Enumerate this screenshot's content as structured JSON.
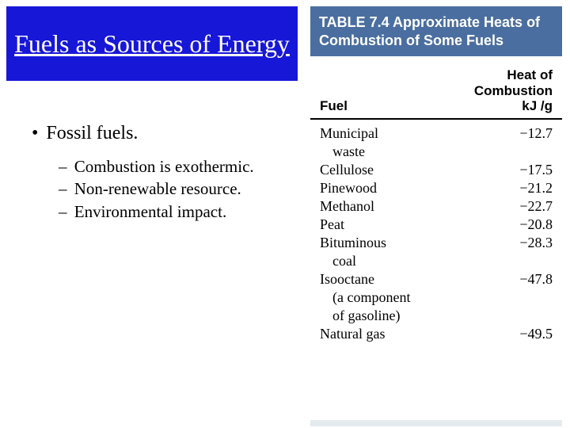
{
  "title": "Fuels as Sources of Energy",
  "main_bullet": "Fossil fuels.",
  "sub_bullets": [
    "Combustion is exothermic.",
    "Non-renewable resource.",
    "Environmental impact."
  ],
  "table": {
    "header": "TABLE 7.4   Approximate Heats of Combustion of Some Fuels",
    "col1": "Fuel",
    "col2_line1": "Heat of",
    "col2_line2": "Combustion",
    "col2_line3": "kJ /g",
    "rows": [
      {
        "fuel_line1": "Municipal",
        "fuel_line2": "waste",
        "value": "−12.7"
      },
      {
        "fuel_line1": "Cellulose",
        "fuel_line2": "",
        "value": "−17.5"
      },
      {
        "fuel_line1": "Pinewood",
        "fuel_line2": "",
        "value": "−21.2"
      },
      {
        "fuel_line1": "Methanol",
        "fuel_line2": "",
        "value": "−22.7"
      },
      {
        "fuel_line1": "Peat",
        "fuel_line2": "",
        "value": "−20.8"
      },
      {
        "fuel_line1": "Bituminous",
        "fuel_line2": "coal",
        "value": "−28.3"
      },
      {
        "fuel_line1": "Isooctane",
        "fuel_line2": "(a component",
        "fuel_line3": "of gasoline)",
        "value": "−47.8"
      },
      {
        "fuel_line1": "Natural gas",
        "fuel_line2": "",
        "value": "−49.5"
      }
    ]
  },
  "colors": {
    "title_bg": "#1717d8",
    "table_header_bg": "#4a6ea0"
  }
}
